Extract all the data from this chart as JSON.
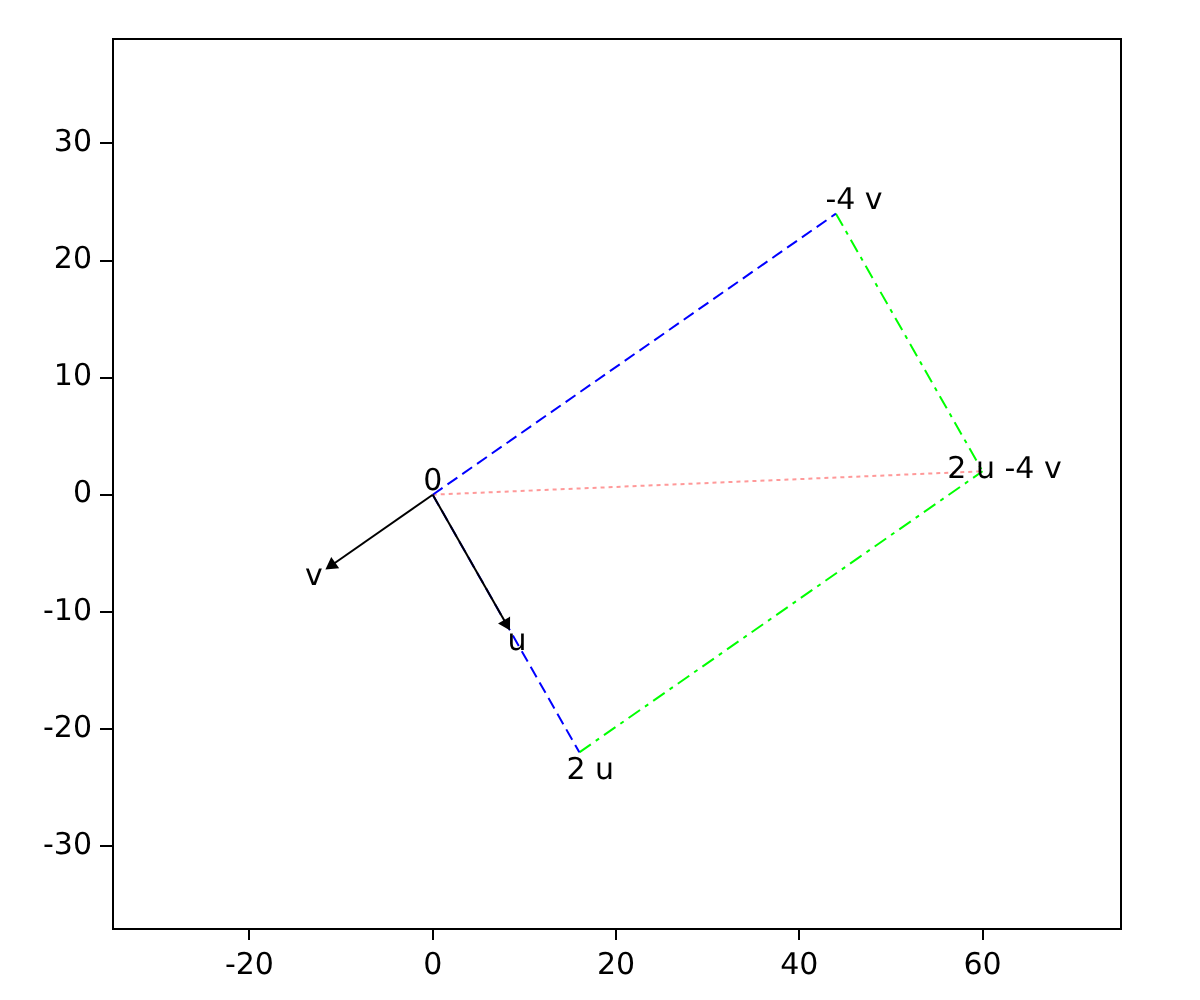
{
  "chart_data": {
    "type": "line",
    "xlim": [
      -35,
      75
    ],
    "ylim": [
      -37,
      39
    ],
    "xticks": [
      -20,
      0,
      20,
      40,
      60
    ],
    "yticks": [
      -30,
      -20,
      -10,
      0,
      10,
      20,
      30
    ],
    "grid": false,
    "legend": false,
    "series": [
      {
        "x": [
          0,
          8
        ],
        "values": [
          0,
          -11
        ],
        "color": "#000000",
        "line_style": "solid",
        "marker": "triangle"
      },
      {
        "x": [
          0,
          -11
        ],
        "values": [
          0,
          -6
        ],
        "color": "#000000",
        "line_style": "solid",
        "marker": "triangle"
      },
      {
        "x": [
          0,
          16
        ],
        "values": [
          0,
          -22
        ],
        "color": "#0000ff",
        "line_style": "dashed",
        "marker": "none"
      },
      {
        "x": [
          0,
          44
        ],
        "values": [
          0,
          24
        ],
        "color": "#0000ff",
        "line_style": "dashed",
        "marker": "none"
      },
      {
        "x": [
          16,
          60
        ],
        "values": [
          -22,
          2
        ],
        "color": "#00ff00",
        "line_style": "dashdot",
        "marker": "none"
      },
      {
        "x": [
          44,
          60
        ],
        "values": [
          24,
          2
        ],
        "color": "#00ff00",
        "line_style": "dashdot",
        "marker": "none"
      },
      {
        "x": [
          0,
          60
        ],
        "values": [
          0,
          2
        ],
        "color": "#ff9999",
        "line_style": "dotted",
        "marker": "none"
      }
    ],
    "annotations": [
      {
        "text": "0",
        "x": 0,
        "y": 0
      },
      {
        "text": "u",
        "x": 8,
        "y": -11
      },
      {
        "text": "v",
        "x": -11,
        "y": -6
      },
      {
        "text": "2 u",
        "x": 16,
        "y": -22
      },
      {
        "text": "-4 v",
        "x": 44,
        "y": 24
      },
      {
        "text": "2 u -4 v",
        "x": 60,
        "y": 2
      }
    ]
  }
}
